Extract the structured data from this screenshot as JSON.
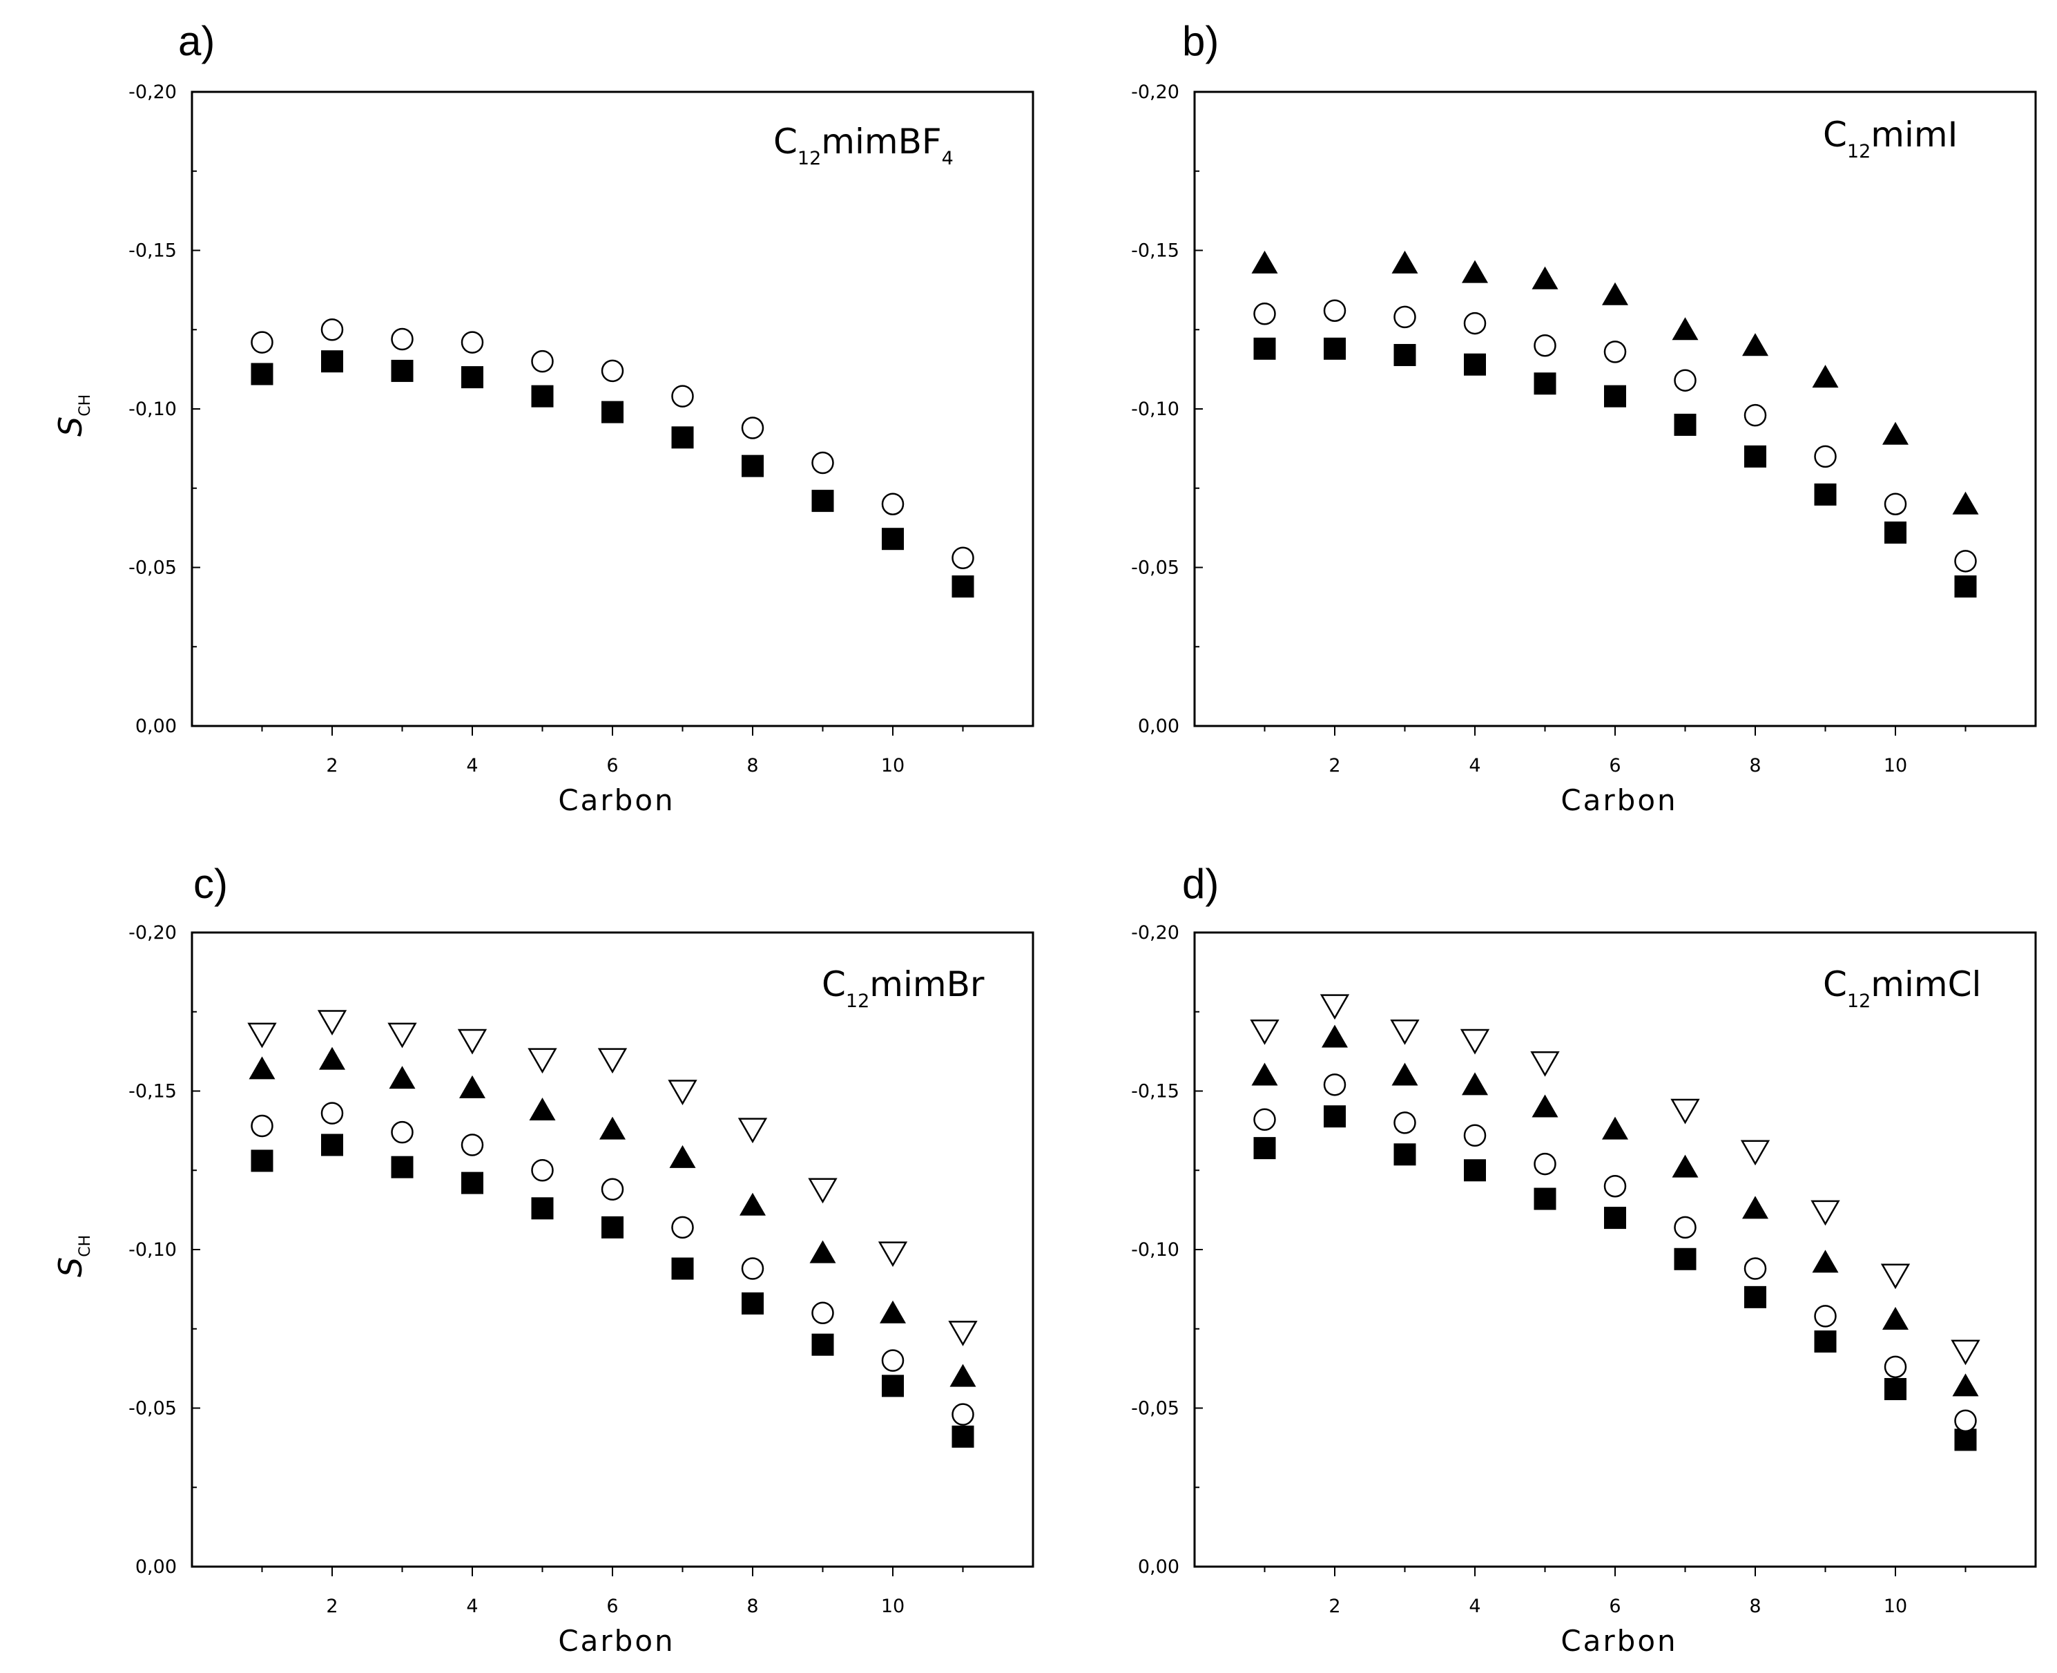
{
  "chart_data": [
    {
      "type": "scatter",
      "panel_label": "a)",
      "compound": {
        "prefix": "C",
        "subscript": "12",
        "middle": "mimBF",
        "subscript2": "4"
      },
      "xlabel": "Carbon",
      "ylabel": {
        "main": "S",
        "sub": "CH"
      },
      "ylim": [
        0,
        -0.2
      ],
      "xlim": [
        0,
        12
      ],
      "yticks": [
        {
          "v": -0.2,
          "label": "-0,20"
        },
        {
          "v": -0.15,
          "label": "-0,15"
        },
        {
          "v": -0.1,
          "label": "-0,10"
        },
        {
          "v": -0.05,
          "label": "-0,05"
        },
        {
          "v": 0,
          "label": "0,00"
        }
      ],
      "xticks": [
        {
          "v": 2,
          "label": "2"
        },
        {
          "v": 4,
          "label": "4"
        },
        {
          "v": 6,
          "label": "6"
        },
        {
          "v": 8,
          "label": "8"
        },
        {
          "v": 10,
          "label": "10"
        }
      ],
      "x": [
        1,
        2,
        3,
        4,
        5,
        6,
        7,
        8,
        9,
        10,
        11
      ],
      "series": [
        {
          "marker": "square",
          "values": [
            -0.111,
            -0.115,
            -0.112,
            -0.11,
            -0.104,
            -0.099,
            -0.091,
            -0.082,
            -0.071,
            -0.059,
            -0.044
          ]
        },
        {
          "marker": "circle",
          "values": [
            -0.121,
            -0.125,
            -0.122,
            -0.121,
            -0.115,
            -0.112,
            -0.104,
            -0.094,
            -0.083,
            -0.07,
            -0.053
          ]
        }
      ]
    },
    {
      "type": "scatter",
      "panel_label": "b)",
      "compound": {
        "prefix": "C",
        "subscript": "12",
        "middle": "mimI",
        "subscript2": ""
      },
      "xlabel": "Carbon",
      "ylabel": {
        "main": "",
        "sub": ""
      },
      "ylim": [
        0,
        -0.2
      ],
      "xlim": [
        0,
        12
      ],
      "yticks": [
        {
          "v": -0.2,
          "label": "-0,20"
        },
        {
          "v": -0.15,
          "label": "-0,15"
        },
        {
          "v": -0.1,
          "label": "-0,10"
        },
        {
          "v": -0.05,
          "label": "-0,05"
        },
        {
          "v": 0,
          "label": "0,00"
        }
      ],
      "xticks": [
        {
          "v": 2,
          "label": "2"
        },
        {
          "v": 4,
          "label": "4"
        },
        {
          "v": 6,
          "label": "6"
        },
        {
          "v": 8,
          "label": "8"
        },
        {
          "v": 10,
          "label": "10"
        }
      ],
      "x": [
        1,
        2,
        3,
        4,
        5,
        6,
        7,
        8,
        9,
        10,
        11
      ],
      "series": [
        {
          "marker": "square",
          "values": [
            -0.119,
            -0.119,
            -0.117,
            -0.114,
            -0.108,
            -0.104,
            -0.095,
            -0.085,
            -0.073,
            -0.061,
            -0.044
          ]
        },
        {
          "marker": "circle",
          "values": [
            -0.13,
            -0.131,
            -0.129,
            -0.127,
            -0.12,
            -0.118,
            -0.109,
            -0.098,
            -0.085,
            -0.07,
            -0.052
          ]
        },
        {
          "marker": "triangle-up",
          "values": [
            -0.146,
            null,
            -0.146,
            -0.143,
            -0.141,
            -0.136,
            -0.125,
            -0.12,
            -0.11,
            -0.092,
            -0.07
          ]
        }
      ]
    },
    {
      "type": "scatter",
      "panel_label": "c)",
      "compound": {
        "prefix": "C",
        "subscript": "12",
        "middle": "mimBr",
        "subscript2": ""
      },
      "xlabel": "Carbon",
      "ylabel": {
        "main": "S",
        "sub": "CH"
      },
      "ylim": [
        0,
        -0.2
      ],
      "xlim": [
        0,
        12
      ],
      "yticks": [
        {
          "v": -0.2,
          "label": "-0,20"
        },
        {
          "v": -0.15,
          "label": "-0,15"
        },
        {
          "v": -0.1,
          "label": "-0,10"
        },
        {
          "v": -0.05,
          "label": "-0,05"
        },
        {
          "v": 0,
          "label": "0,00"
        }
      ],
      "xticks": [
        {
          "v": 2,
          "label": "2"
        },
        {
          "v": 4,
          "label": "4"
        },
        {
          "v": 6,
          "label": "6"
        },
        {
          "v": 8,
          "label": "8"
        },
        {
          "v": 10,
          "label": "10"
        }
      ],
      "x": [
        1,
        2,
        3,
        4,
        5,
        6,
        7,
        8,
        9,
        10,
        11
      ],
      "series": [
        {
          "marker": "square",
          "values": [
            -0.128,
            -0.133,
            -0.126,
            -0.121,
            -0.113,
            -0.107,
            -0.094,
            -0.083,
            -0.07,
            -0.057,
            -0.041
          ]
        },
        {
          "marker": "circle",
          "values": [
            -0.139,
            -0.143,
            -0.137,
            -0.133,
            -0.125,
            -0.119,
            -0.107,
            -0.094,
            -0.08,
            -0.065,
            -0.048
          ]
        },
        {
          "marker": "triangle-up",
          "values": [
            -0.157,
            -0.16,
            -0.154,
            -0.151,
            -0.144,
            -0.138,
            -0.129,
            -0.114,
            -0.099,
            -0.08,
            -0.06
          ]
        },
        {
          "marker": "triangle-down",
          "values": [
            -0.168,
            -0.172,
            -0.168,
            -0.166,
            -0.16,
            -0.16,
            -0.15,
            -0.138,
            -0.119,
            -0.099,
            -0.074
          ]
        }
      ]
    },
    {
      "type": "scatter",
      "panel_label": "d)",
      "compound": {
        "prefix": "C",
        "subscript": "12",
        "middle": "mimCl",
        "subscript2": ""
      },
      "xlabel": "Carbon",
      "ylabel": {
        "main": "",
        "sub": ""
      },
      "ylim": [
        0,
        -0.2
      ],
      "xlim": [
        0,
        12
      ],
      "yticks": [
        {
          "v": -0.2,
          "label": "-0,20"
        },
        {
          "v": -0.15,
          "label": "-0,15"
        },
        {
          "v": -0.1,
          "label": "-0,10"
        },
        {
          "v": -0.05,
          "label": "-0,05"
        },
        {
          "v": 0,
          "label": "0,00"
        }
      ],
      "xticks": [
        {
          "v": 2,
          "label": "2"
        },
        {
          "v": 4,
          "label": "4"
        },
        {
          "v": 6,
          "label": "6"
        },
        {
          "v": 8,
          "label": "8"
        },
        {
          "v": 10,
          "label": "10"
        }
      ],
      "x": [
        1,
        2,
        3,
        4,
        5,
        6,
        7,
        8,
        9,
        10,
        11
      ],
      "series": [
        {
          "marker": "square",
          "values": [
            -0.132,
            -0.142,
            -0.13,
            -0.125,
            -0.116,
            -0.11,
            -0.097,
            -0.085,
            -0.071,
            -0.056,
            -0.04
          ]
        },
        {
          "marker": "circle",
          "values": [
            -0.141,
            -0.152,
            -0.14,
            -0.136,
            -0.127,
            -0.12,
            -0.107,
            -0.094,
            -0.079,
            -0.063,
            -0.046
          ]
        },
        {
          "marker": "triangle-up",
          "values": [
            -0.155,
            -0.167,
            -0.155,
            -0.152,
            -0.145,
            -0.138,
            -0.126,
            -0.113,
            -0.096,
            -0.078,
            -0.057
          ]
        },
        {
          "marker": "triangle-down",
          "values": [
            -0.169,
            -0.177,
            -0.169,
            -0.166,
            -0.159,
            null,
            -0.144,
            -0.131,
            -0.112,
            -0.092,
            -0.068
          ]
        }
      ]
    }
  ]
}
